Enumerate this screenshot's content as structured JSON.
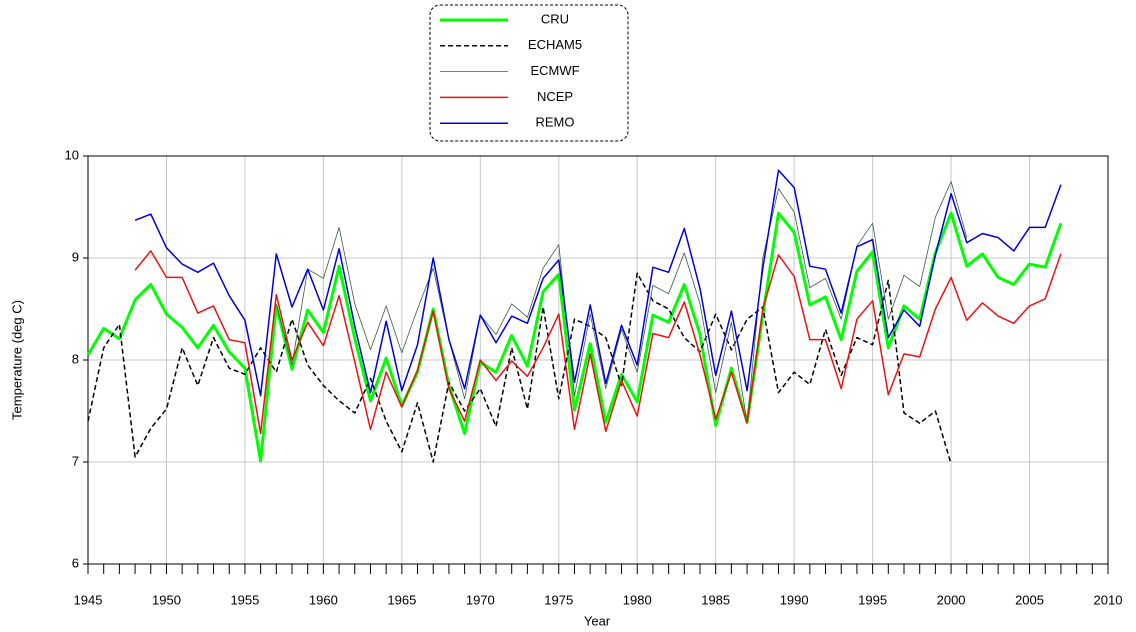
{
  "chart_data": {
    "type": "line",
    "xlabel": "Year",
    "ylabel": "Temperature (deg C)",
    "x": [
      1945,
      1946,
      1947,
      1948,
      1949,
      1950,
      1951,
      1952,
      1953,
      1954,
      1955,
      1956,
      1957,
      1958,
      1959,
      1960,
      1961,
      1962,
      1963,
      1964,
      1965,
      1966,
      1967,
      1968,
      1969,
      1970,
      1971,
      1972,
      1973,
      1974,
      1975,
      1976,
      1977,
      1978,
      1979,
      1980,
      1981,
      1982,
      1983,
      1984,
      1985,
      1986,
      1987,
      1988,
      1989,
      1990,
      1991,
      1992,
      1993,
      1994,
      1995,
      1996,
      1997,
      1998,
      1999,
      2000,
      2001,
      2002,
      2003,
      2004,
      2005,
      2006,
      2007
    ],
    "xlim": [
      1945,
      2010
    ],
    "xticks": [
      1945,
      1950,
      1955,
      1960,
      1965,
      1970,
      1975,
      1980,
      1985,
      1990,
      1995,
      2000,
      2005,
      2010
    ],
    "ylim": [
      6,
      10
    ],
    "yticks": [
      6,
      7,
      8,
      9,
      10
    ],
    "grid": true,
    "series": [
      {
        "name": "CRU",
        "color": "#00ff00",
        "width": 3,
        "dashed": false,
        "values": [
          8.05,
          8.31,
          8.21,
          8.59,
          8.74,
          8.45,
          8.32,
          8.12,
          8.34,
          8.08,
          7.92,
          7.01,
          8.53,
          7.91,
          8.49,
          8.27,
          8.92,
          8.21,
          7.6,
          8.02,
          7.55,
          7.88,
          8.5,
          7.75,
          7.28,
          7.98,
          7.88,
          8.24,
          7.94,
          8.67,
          8.84,
          7.51,
          8.16,
          7.39,
          7.86,
          7.59,
          8.44,
          8.37,
          8.74,
          8.25,
          7.36,
          7.92,
          7.39,
          8.44,
          9.44,
          9.25,
          8.54,
          8.62,
          8.2,
          8.87,
          9.06,
          8.12,
          8.53,
          8.4,
          9.05,
          9.44,
          8.92,
          9.04,
          8.81,
          8.74,
          8.94,
          8.91,
          9.34
        ]
      },
      {
        "name": "ECHAM5",
        "color": "#000000",
        "width": 1.5,
        "dashed": true,
        "values": [
          7.4,
          8.12,
          8.35,
          7.05,
          7.33,
          7.52,
          8.12,
          7.75,
          8.22,
          7.92,
          7.86,
          8.12,
          7.88,
          8.4,
          7.95,
          7.75,
          7.6,
          7.48,
          7.82,
          7.4,
          7.1,
          7.58,
          7.0,
          7.78,
          7.5,
          7.72,
          7.35,
          8.12,
          7.52,
          8.52,
          7.62,
          8.4,
          8.33,
          8.22,
          7.75,
          8.85,
          8.58,
          8.5,
          8.22,
          8.08,
          8.45,
          8.1,
          8.4,
          8.52,
          7.68,
          7.88,
          7.76,
          8.3,
          7.85,
          8.22,
          8.15,
          8.78,
          7.48,
          7.38,
          7.5,
          6.98,
          null,
          null,
          null,
          null,
          null,
          null,
          null
        ]
      },
      {
        "name": "ECMWF",
        "color": "#3a5a4a",
        "width": 0.8,
        "dashed": false,
        "values": [
          null,
          null,
          null,
          null,
          null,
          null,
          null,
          null,
          null,
          null,
          null,
          null,
          8.55,
          7.95,
          8.89,
          8.8,
          9.3,
          8.55,
          8.1,
          8.53,
          8.07,
          8.5,
          8.9,
          8.2,
          7.62,
          8.44,
          8.25,
          8.55,
          8.42,
          8.9,
          9.13,
          7.65,
          8.45,
          7.72,
          8.3,
          7.88,
          8.73,
          8.65,
          9.05,
          8.55,
          7.68,
          8.37,
          7.38,
          9.0,
          9.68,
          9.45,
          8.71,
          8.8,
          8.4,
          9.12,
          9.34,
          8.4,
          8.83,
          8.72,
          9.4,
          9.75,
          9.2,
          null,
          null,
          null,
          null,
          null,
          null
        ]
      },
      {
        "name": "NCEP",
        "color": "#ee1111",
        "width": 1.5,
        "dashed": false,
        "values": [
          null,
          null,
          null,
          8.88,
          9.07,
          8.81,
          8.81,
          8.46,
          8.53,
          8.2,
          8.17,
          7.28,
          8.64,
          8.0,
          8.37,
          8.14,
          8.63,
          7.98,
          7.32,
          7.88,
          7.54,
          7.9,
          8.48,
          7.72,
          7.4,
          8.0,
          7.8,
          7.99,
          7.84,
          8.12,
          8.45,
          7.32,
          8.06,
          7.3,
          7.8,
          7.45,
          8.26,
          8.22,
          8.57,
          8.05,
          7.42,
          7.88,
          7.38,
          8.5,
          9.03,
          8.82,
          8.2,
          8.2,
          7.72,
          8.4,
          8.58,
          7.66,
          8.06,
          8.03,
          8.5,
          8.81,
          8.39,
          8.56,
          8.43,
          8.36,
          8.53,
          8.6,
          9.04
        ]
      },
      {
        "name": "REMO",
        "color": "#0000dd",
        "width": 1.5,
        "dashed": false,
        "values": [
          null,
          null,
          null,
          9.37,
          9.43,
          9.1,
          8.94,
          8.86,
          8.95,
          8.63,
          8.39,
          7.65,
          9.04,
          8.52,
          8.89,
          8.49,
          9.09,
          8.33,
          7.68,
          8.38,
          7.7,
          8.15,
          9.0,
          8.2,
          7.72,
          8.44,
          8.17,
          8.43,
          8.36,
          8.8,
          8.98,
          7.78,
          8.54,
          7.77,
          8.34,
          7.95,
          8.91,
          8.86,
          9.29,
          8.7,
          7.85,
          8.48,
          7.7,
          8.9,
          9.86,
          9.69,
          8.92,
          8.89,
          8.46,
          9.11,
          9.18,
          8.22,
          8.49,
          8.33,
          9.03,
          9.63,
          9.15,
          9.24,
          9.2,
          9.07,
          9.3,
          9.3,
          9.72
        ]
      }
    ]
  }
}
